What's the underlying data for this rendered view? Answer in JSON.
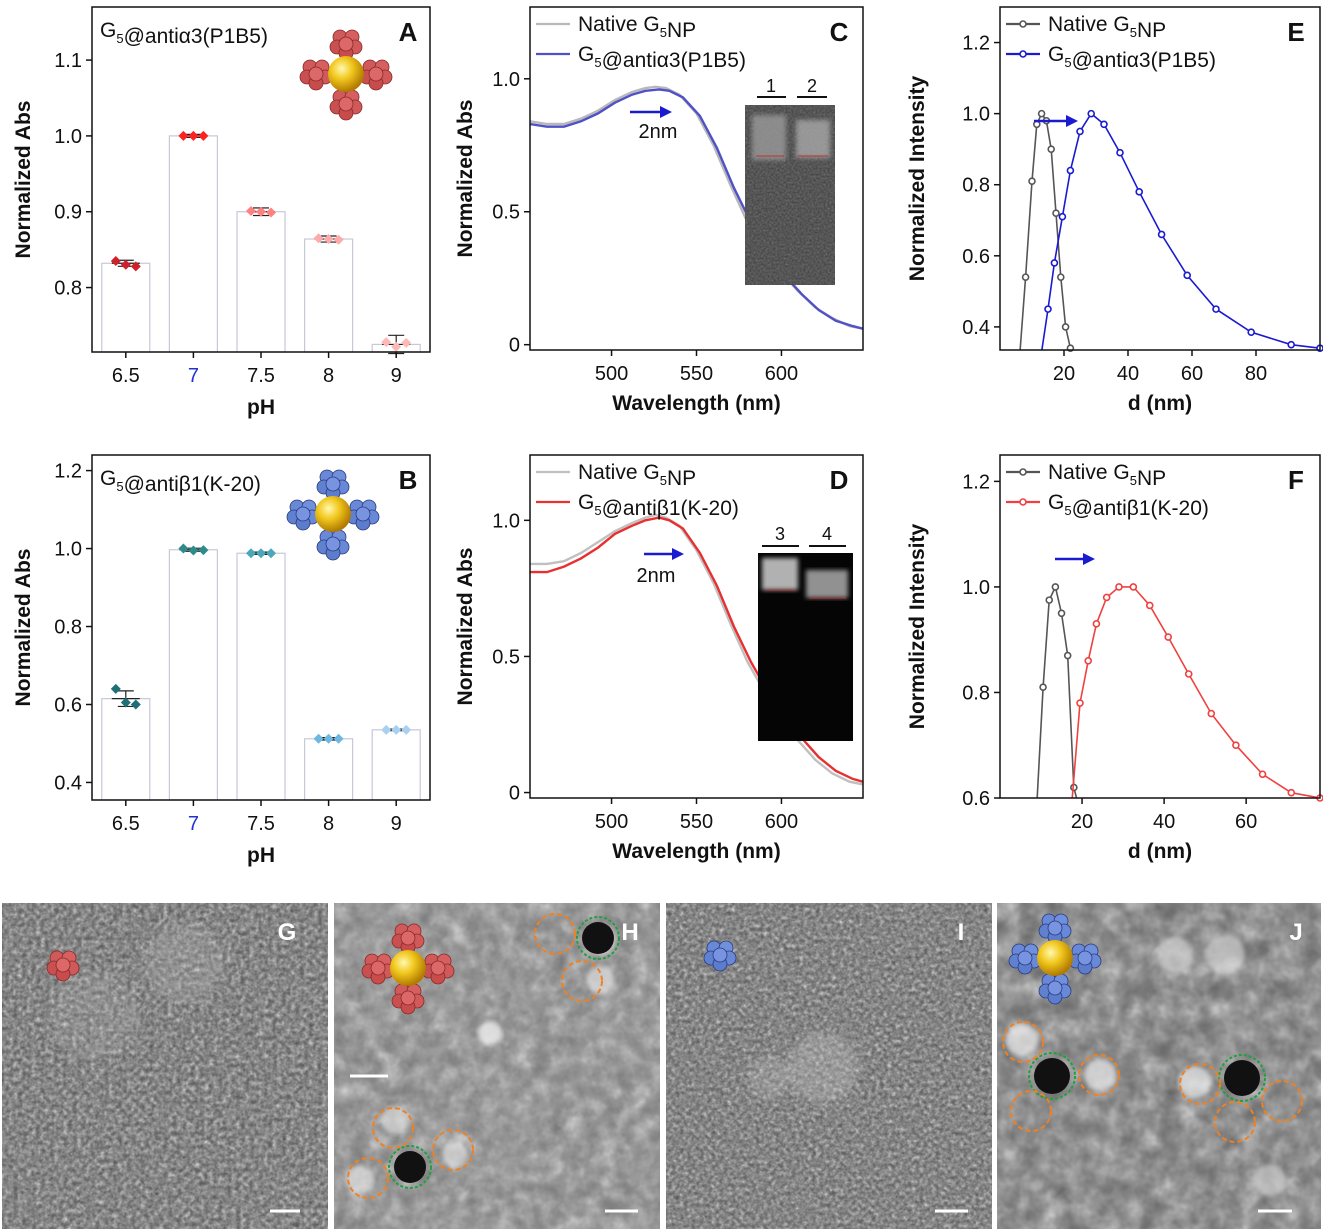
{
  "chart_data": [
    {
      "panel": "A",
      "type": "bar",
      "title": "G₅@antiα3(P1B5)",
      "xlabel": "pH",
      "ylabel": "Normalized Abs",
      "categories": [
        "6.5",
        "7",
        "7.5",
        "8",
        "9"
      ],
      "values": [
        0.832,
        1.0,
        0.9,
        0.864,
        0.725
      ],
      "errors": [
        0.004,
        0.002,
        0.005,
        0.004,
        0.012
      ],
      "replicates": [
        [
          0.835,
          0.83,
          0.828
        ],
        [
          1.0,
          1.0,
          1.0
        ],
        [
          0.901,
          0.9,
          0.899
        ],
        [
          0.865,
          0.864,
          0.863
        ],
        [
          0.728,
          0.722,
          0.727
        ]
      ],
      "point_colors": [
        "#d0202a",
        "#ff2020",
        "#ff8080",
        "#ffaaaa",
        "#ffb8b8"
      ],
      "ylim": [
        0.715,
        1.17
      ],
      "yticks": [
        "0.8",
        "0.9",
        "1.0",
        "1.1"
      ],
      "highlight_category": "7",
      "highlight_color": "#2233cc"
    },
    {
      "panel": "B",
      "type": "bar",
      "title": "G₅@antiβ1(K-20)",
      "xlabel": "pH",
      "ylabel": "Normalized Abs",
      "categories": [
        "6.5",
        "7",
        "7.5",
        "8",
        "9"
      ],
      "values": [
        0.615,
        0.997,
        0.988,
        0.512,
        0.535
      ],
      "errors": [
        0.02,
        0.004,
        0.003,
        0.003,
        0.002
      ],
      "replicates": [
        [
          0.64,
          0.605,
          0.6
        ],
        [
          1.0,
          0.995,
          0.996
        ],
        [
          0.988,
          0.988,
          0.988
        ],
        [
          0.512,
          0.512,
          0.512
        ],
        [
          0.535,
          0.535,
          0.535
        ]
      ],
      "point_colors": [
        "#1f6f78",
        "#2e8b8b",
        "#4aa8b8",
        "#6cb8e0",
        "#a8d0f0"
      ],
      "ylim": [
        0.355,
        1.24
      ],
      "yticks": [
        "0.4",
        "0.6",
        "0.8",
        "1.0",
        "1.2"
      ],
      "highlight_category": "7",
      "highlight_color": "#2233cc"
    },
    {
      "panel": "C",
      "type": "line",
      "xlabel": "Wavelength (nm)",
      "ylabel": "Normalized Abs",
      "xlim": [
        452,
        648
      ],
      "ylim": [
        -0.02,
        1.27
      ],
      "xticks": [
        "500",
        "550",
        "600"
      ],
      "yticks": [
        "0",
        "0.5",
        "1.0"
      ],
      "series": [
        {
          "name": "Native G₅NP",
          "color": "#b8b8b8",
          "x": [
            452,
            462,
            472,
            482,
            492,
            502,
            512,
            520,
            526,
            532,
            540,
            550,
            560,
            570,
            580,
            590,
            600,
            610,
            620,
            630,
            640,
            648
          ],
          "y": [
            0.84,
            0.83,
            0.83,
            0.85,
            0.88,
            0.92,
            0.95,
            0.965,
            0.97,
            0.965,
            0.94,
            0.87,
            0.75,
            0.6,
            0.46,
            0.36,
            0.27,
            0.2,
            0.14,
            0.1,
            0.07,
            0.06
          ]
        },
        {
          "name": "G₅@antiα3(P1B5)",
          "color": "#5050c8",
          "x": [
            452,
            462,
            472,
            482,
            492,
            502,
            512,
            520,
            528,
            534,
            542,
            552,
            562,
            572,
            582,
            592,
            602,
            612,
            622,
            632,
            642,
            648
          ],
          "y": [
            0.83,
            0.82,
            0.82,
            0.84,
            0.87,
            0.91,
            0.94,
            0.955,
            0.96,
            0.955,
            0.93,
            0.86,
            0.74,
            0.59,
            0.46,
            0.35,
            0.26,
            0.19,
            0.13,
            0.09,
            0.07,
            0.06
          ]
        }
      ],
      "annotation": "2nm",
      "gel_lanes": [
        "1",
        "2"
      ]
    },
    {
      "panel": "D",
      "type": "line",
      "xlabel": "Wavelength (nm)",
      "ylabel": "Normalized Abs",
      "xlim": [
        452,
        648
      ],
      "ylim": [
        -0.02,
        1.24
      ],
      "xticks": [
        "500",
        "550",
        "600"
      ],
      "yticks": [
        "0",
        "0.5",
        "1.0"
      ],
      "series": [
        {
          "name": "Native G₅NP",
          "color": "#c0c0c0",
          "x": [
            452,
            462,
            472,
            482,
            492,
            502,
            512,
            520,
            526,
            532,
            540,
            550,
            560,
            570,
            580,
            590,
            600,
            610,
            620,
            630,
            640,
            648
          ],
          "y": [
            0.84,
            0.84,
            0.85,
            0.88,
            0.92,
            0.96,
            0.99,
            1.01,
            1.02,
            1.01,
            0.98,
            0.89,
            0.77,
            0.62,
            0.48,
            0.37,
            0.27,
            0.19,
            0.12,
            0.07,
            0.04,
            0.03
          ]
        },
        {
          "name": "G₅@antiβ1(K-20)",
          "color": "#e83030",
          "x": [
            452,
            462,
            472,
            482,
            492,
            502,
            512,
            520,
            528,
            534,
            542,
            552,
            562,
            572,
            582,
            592,
            602,
            612,
            622,
            632,
            642,
            648
          ],
          "y": [
            0.81,
            0.81,
            0.83,
            0.86,
            0.9,
            0.95,
            0.98,
            1.0,
            1.01,
            1.0,
            0.97,
            0.88,
            0.76,
            0.61,
            0.48,
            0.37,
            0.28,
            0.2,
            0.13,
            0.08,
            0.05,
            0.04
          ]
        }
      ],
      "annotation": "2nm",
      "gel_lanes": [
        "3",
        "4"
      ]
    },
    {
      "panel": "E",
      "type": "line",
      "xlabel": "d (nm)",
      "ylabel": "Normalized Intensity",
      "xlim": [
        0,
        100
      ],
      "ylim": [
        0.335,
        1.3
      ],
      "xticks": [
        "20",
        "40",
        "60",
        "80"
      ],
      "yticks": [
        "0.4",
        "0.6",
        "0.8",
        "1.0",
        "1.2"
      ],
      "series": [
        {
          "name": "Native G₅NP",
          "color": "#555555",
          "x": [
            6,
            8,
            10,
            11.5,
            13,
            14.5,
            16,
            17.5,
            19,
            20.5,
            22
          ],
          "y": [
            0.3,
            0.54,
            0.81,
            0.97,
            1.0,
            0.98,
            0.9,
            0.72,
            0.54,
            0.4,
            0.34
          ]
        },
        {
          "name": "G₅@antiα3(P1B5)",
          "color": "#1a1ad0",
          "x": [
            13,
            15,
            17,
            19.5,
            22,
            25,
            28.5,
            32.5,
            37.5,
            43.5,
            50.5,
            58.5,
            67.5,
            78.5,
            91,
            100
          ],
          "y": [
            0.33,
            0.45,
            0.58,
            0.71,
            0.84,
            0.95,
            1.0,
            0.97,
            0.89,
            0.78,
            0.66,
            0.545,
            0.45,
            0.385,
            0.35,
            0.34
          ]
        }
      ]
    },
    {
      "panel": "F",
      "type": "line",
      "xlabel": "d (nm)",
      "ylabel": "Normalized Intensity",
      "xlim": [
        0,
        78
      ],
      "ylim": [
        0.6,
        1.25
      ],
      "xticks": [
        "20",
        "40",
        "60"
      ],
      "yticks": [
        "0.6",
        "0.8",
        "1.0",
        "1.2"
      ],
      "series": [
        {
          "name": "Native G₅NP",
          "color": "#555555",
          "x": [
            9,
            10.5,
            12,
            13.5,
            15,
            16.5,
            18,
            19
          ],
          "y": [
            0.59,
            0.81,
            0.975,
            1.0,
            0.95,
            0.87,
            0.62,
            0.59
          ]
        },
        {
          "name": "G₅@antiβ1(K-20)",
          "color": "#f04040",
          "x": [
            17.5,
            19.5,
            21.5,
            23.5,
            26,
            29,
            32.5,
            36.5,
            41,
            46,
            51.5,
            57.5,
            64,
            71,
            78
          ],
          "y": [
            0.59,
            0.78,
            0.86,
            0.93,
            0.98,
            1.0,
            1.0,
            0.965,
            0.905,
            0.835,
            0.76,
            0.7,
            0.645,
            0.61,
            0.6
          ]
        }
      ]
    }
  ],
  "panel_letters": [
    "A",
    "B",
    "C",
    "D",
    "E",
    "F",
    "G",
    "H",
    "I",
    "J"
  ],
  "colors": {
    "axis": "#111111",
    "bar_fill": "#ffffff",
    "bar_stroke": "#c8c8d8",
    "arrow": "#1a1ad0",
    "protein_red": "#d05a5a",
    "protein_blue": "#6a88d8",
    "gold": "#f0c020",
    "ring_orange": "#f08020",
    "ring_green": "#20a040"
  }
}
